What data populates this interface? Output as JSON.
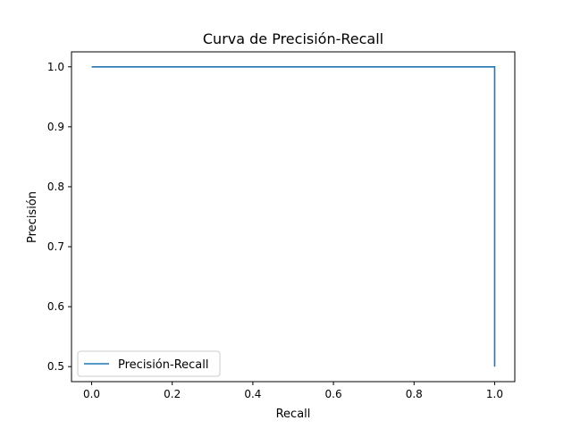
{
  "chart_data": {
    "type": "line",
    "title": "Curva de Precisión-Recall",
    "xlabel": "Recall",
    "ylabel": "Precisión",
    "xlim": [
      -0.05,
      1.05
    ],
    "ylim": [
      0.475,
      1.025
    ],
    "xticks": [
      0.0,
      0.2,
      0.4,
      0.6,
      0.8,
      1.0
    ],
    "xtick_labels": [
      "0.0",
      "0.2",
      "0.4",
      "0.6",
      "0.8",
      "1.0"
    ],
    "yticks": [
      0.5,
      0.6,
      0.7,
      0.8,
      0.9,
      1.0
    ],
    "ytick_labels": [
      "0.5",
      "0.6",
      "0.7",
      "0.8",
      "0.9",
      "1.0"
    ],
    "grid": false,
    "legend_position": "lower-left",
    "series": [
      {
        "name": "Precisión-Recall",
        "color": "#1f77b4",
        "x": [
          0.0,
          1.0,
          1.0
        ],
        "y": [
          1.0,
          1.0,
          0.5
        ]
      }
    ]
  }
}
